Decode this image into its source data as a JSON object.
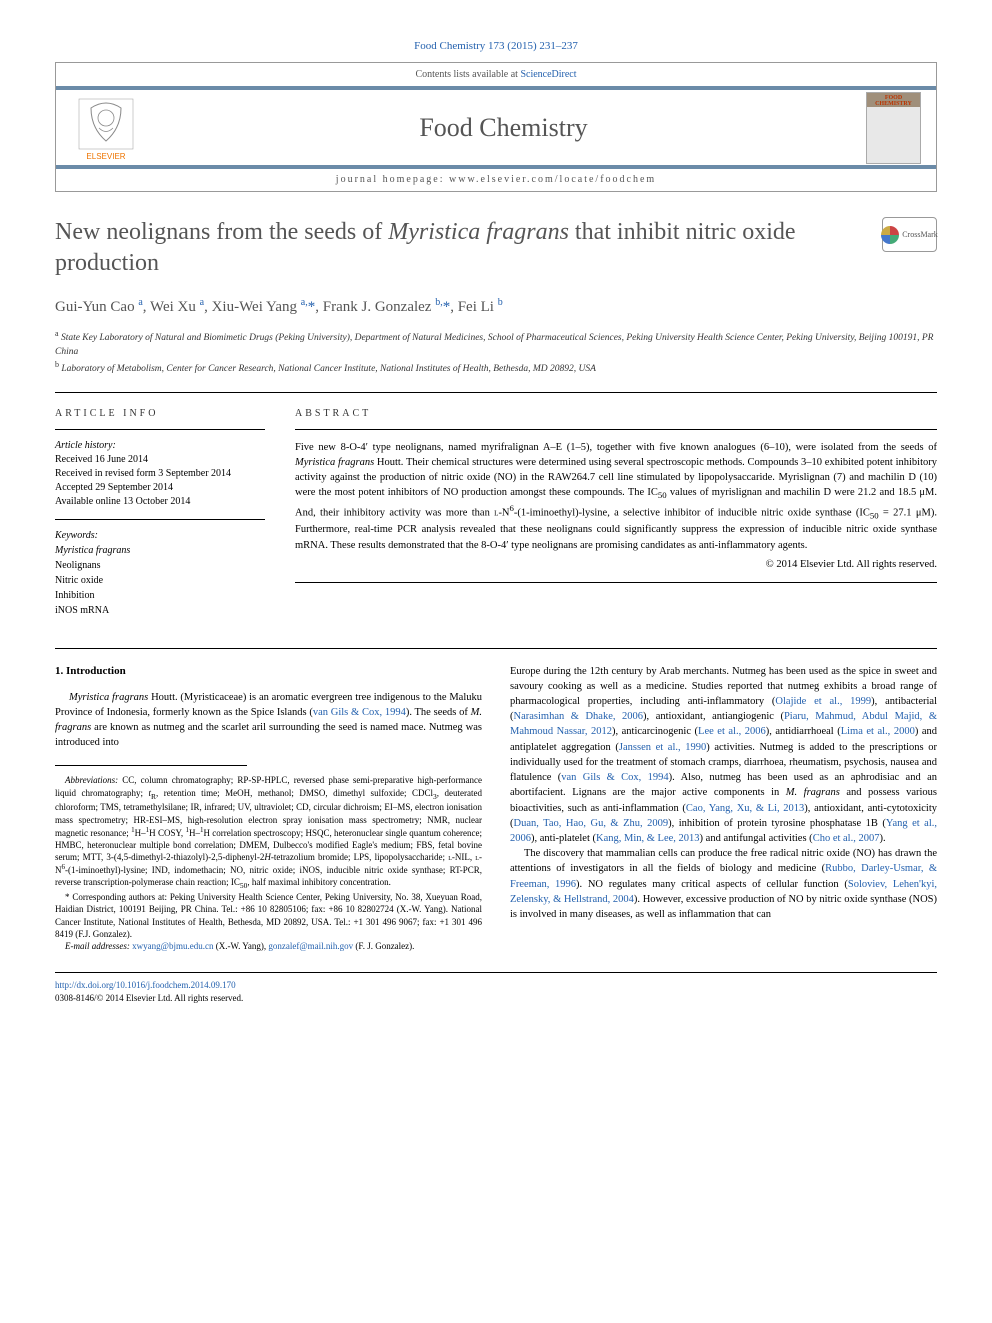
{
  "citation": "Food Chemistry 173 (2015) 231–237",
  "header": {
    "contents_available": "Contents lists available at ",
    "sciencedirect": "ScienceDirect",
    "journal_name": "Food Chemistry",
    "homepage_label": "journal homepage: ",
    "homepage_url": "www.elsevier.com/locate/foodchem",
    "cover_text": "FOOD CHEMISTRY"
  },
  "title": {
    "prefix": "New neolignans from the seeds of ",
    "italic": "Myristica fragrans",
    "suffix": " that inhibit nitric oxide production"
  },
  "crossmark_label": "CrossMark",
  "authors_html": "Gui-Yun Cao <sup>a</sup>, Wei Xu <sup>a</sup>, Xiu-Wei Yang <sup>a,</sup><span class='star'>*</span>, Frank J. Gonzalez <sup>b,</sup><span class='star'>*</span>, Fei Li <sup>b</sup>",
  "affiliations": {
    "a": "State Key Laboratory of Natural and Biomimetic Drugs (Peking University), Department of Natural Medicines, School of Pharmaceutical Sciences, Peking University Health Science Center, Peking University, Beijing 100191, PR China",
    "b": "Laboratory of Metabolism, Center for Cancer Research, National Cancer Institute, National Institutes of Health, Bethesda, MD 20892, USA"
  },
  "article_info": {
    "heading": "ARTICLE INFO",
    "history_label": "Article history:",
    "received": "Received 16 June 2014",
    "revised": "Received in revised form 3 September 2014",
    "accepted": "Accepted 29 September 2014",
    "online": "Available online 13 October 2014",
    "keywords_label": "Keywords:",
    "keywords": [
      "Myristica fragrans",
      "Neolignans",
      "Nitric oxide",
      "Inhibition",
      "iNOS mRNA"
    ]
  },
  "abstract": {
    "heading": "ABSTRACT",
    "text": "Five new 8-O-4′ type neolignans, named myrifralignan A–E (1–5), together with five known analogues (6–10), were isolated from the seeds of <span class='italic'>Myristica fragrans</span> Houtt. Their chemical structures were determined using several spectroscopic methods. Compounds 3–10 exhibited potent inhibitory activity against the production of nitric oxide (NO) in the RAW264.7 cell line stimulated by lipopolysaccaride. Myrislignan (7) and machilin D (10) were the most potent inhibitors of NO production amongst these compounds. The IC<sub>50</sub> values of myrislignan and machilin D were 21.2 and 18.5 μM. And, their inhibitory activity was more than <span style='font-variant:small-caps'>l</span>-N<sup>6</sup>-(1-iminoethyl)-lysine, a selective inhibitor of inducible nitric oxide synthase (IC<sub>50</sub> = 27.1 μM). Furthermore, real-time PCR analysis revealed that these neolignans could significantly suppress the expression of inducible nitric oxide synthase mRNA. These results demonstrated that the 8-O-4′ type neolignans are promising candidates as anti-inflammatory agents.",
    "copyright": "© 2014 Elsevier Ltd. All rights reserved."
  },
  "body": {
    "section_heading": "1. Introduction",
    "left_para": "<span class='italic'>Myristica fragrans</span> Houtt. (Myristicaceae) is an aromatic evergreen tree indigenous to the Maluku Province of Indonesia, formerly known as the Spice Islands (<span class='ref'>van Gils & Cox, 1994</span>). The seeds of <span class='italic'>M. fragrans</span> are known as nutmeg and the scarlet aril surrounding the seed is named mace. Nutmeg was introduced into",
    "abbrev_label": "Abbreviations:",
    "abbrev_text": " CC, column chromatography; RP-SP-HPLC, reversed phase semi-preparative high-performance liquid chromatography; <span class='italic'>t</span><sub>R</sub>, retention time; MeOH, methanol; DMSO, dimethyl sulfoxide; CDCl<sub>3</sub>, deuterated chloroform; TMS, tetramethylsilane; IR, infrared; UV, ultraviolet; CD, circular dichroism; EI–MS, electron ionisation mass spectrometry; HR-ESI–MS, high-resolution electron spray ionisation mass spectrometry; NMR, nuclear magnetic resonance; <sup>1</sup>H–<sup>1</sup>H COSY, <sup>1</sup>H–<sup>1</sup>H correlation spectroscopy; HSQC, heteronuclear single quantum coherence; HMBC, heteronuclear multiple bond correlation; DMEM, Dulbecco's modified Eagle's medium; FBS, fetal bovine serum; MTT, 3-(4,5-dimethyl-2-thiazolyl)-2,5-diphenyl-2<span class='italic'>H</span>-tetrazolium bromide; LPS, lipopolysaccharide; <span style='font-variant:small-caps'>l</span>-NIL, <span style='font-variant:small-caps'>l</span>-N<sup>6</sup>-(1-iminoethyl)-lysine; IND, indomethacin; NO, nitric oxide; iNOS, inducible nitric oxide synthase; RT-PCR, reverse transcription-polymerase chain reaction; IC<sub>50</sub>, half maximal inhibitory concentration.",
    "corresponding": "* Corresponding authors at: Peking University Health Science Center, Peking University, No. 38, Xueyuan Road, Haidian District, 100191 Beijing, PR China. Tel.: +86 10 82805106; fax: +86 10 82802724 (X.-W. Yang). National Cancer Institute, National Institutes of Health, Bethesda, MD 20892, USA. Tel.: +1 301 496 9067; fax: +1 301 496 8419 (F.J. Gonzalez).",
    "email_label": "E-mail addresses:",
    "email_text": " <span class='ref'>xwyang@bjmu.edu.cn</span> (X.-W. Yang), <span class='ref'>gonzalef@mail.nih.gov</span> (F. J. Gonzalez).",
    "right_para1": "Europe during the 12th century by Arab merchants. Nutmeg has been used as the spice in sweet and savoury cooking as well as a medicine. Studies reported that nutmeg exhibits a broad range of pharmacological properties, including anti-inflammatory (<span class='ref'>Olajide et al., 1999</span>), antibacterial (<span class='ref'>Narasimhan & Dhake, 2006</span>), antioxidant, antiangiogenic (<span class='ref'>Piaru, Mahmud, Abdul Majid, & Mahmoud Nassar, 2012</span>), anticarcinogenic (<span class='ref'>Lee et al., 2006</span>), antidiarrhoeal (<span class='ref'>Lima et al., 2000</span>) and antiplatelet aggregation (<span class='ref'>Janssen et al., 1990</span>) activities. Nutmeg is added to the prescriptions or individually used for the treatment of stomach cramps, diarrhoea, rheumatism, psychosis, nausea and flatulence (<span class='ref'>van Gils & Cox, 1994</span>). Also, nutmeg has been used as an aphrodisiac and an abortifacient. Lignans are the major active components in <span class='italic'>M. fragrans</span> and possess various bioactivities, such as anti-inflammation (<span class='ref'>Cao, Yang, Xu, & Li, 2013</span>), antioxidant, anti-cytotoxicity (<span class='ref'>Duan, Tao, Hao, Gu, & Zhu, 2009</span>), inhibition of protein tyrosine phosphatase 1B (<span class='ref'>Yang et al., 2006</span>), anti-platelet (<span class='ref'>Kang, Min, & Lee, 2013</span>) and antifungal activities (<span class='ref'>Cho et al., 2007</span>).",
    "right_para2": "The discovery that mammalian cells can produce the free radical nitric oxide (NO) has drawn the attentions of investigators in all the fields of biology and medicine (<span class='ref'>Rubbo, Darley-Usmar, & Freeman, 1996</span>). NO regulates many critical aspects of cellular function (<span class='ref'>Soloviev, Lehen'kyi, Zelensky, & Hellstrand, 2004</span>). However, excessive production of NO by nitric oxide synthase (NOS) is involved in many diseases, as well as inflammation that can"
  },
  "footer": {
    "doi": "http://dx.doi.org/10.1016/j.foodchem.2014.09.170",
    "issn": "0308-8146/© 2014 Elsevier Ltd. All rights reserved."
  },
  "colors": {
    "link": "#2461ae",
    "bar": "#6b8ba8",
    "text_gray": "#555555",
    "elsevier_orange": "#ee7400"
  }
}
